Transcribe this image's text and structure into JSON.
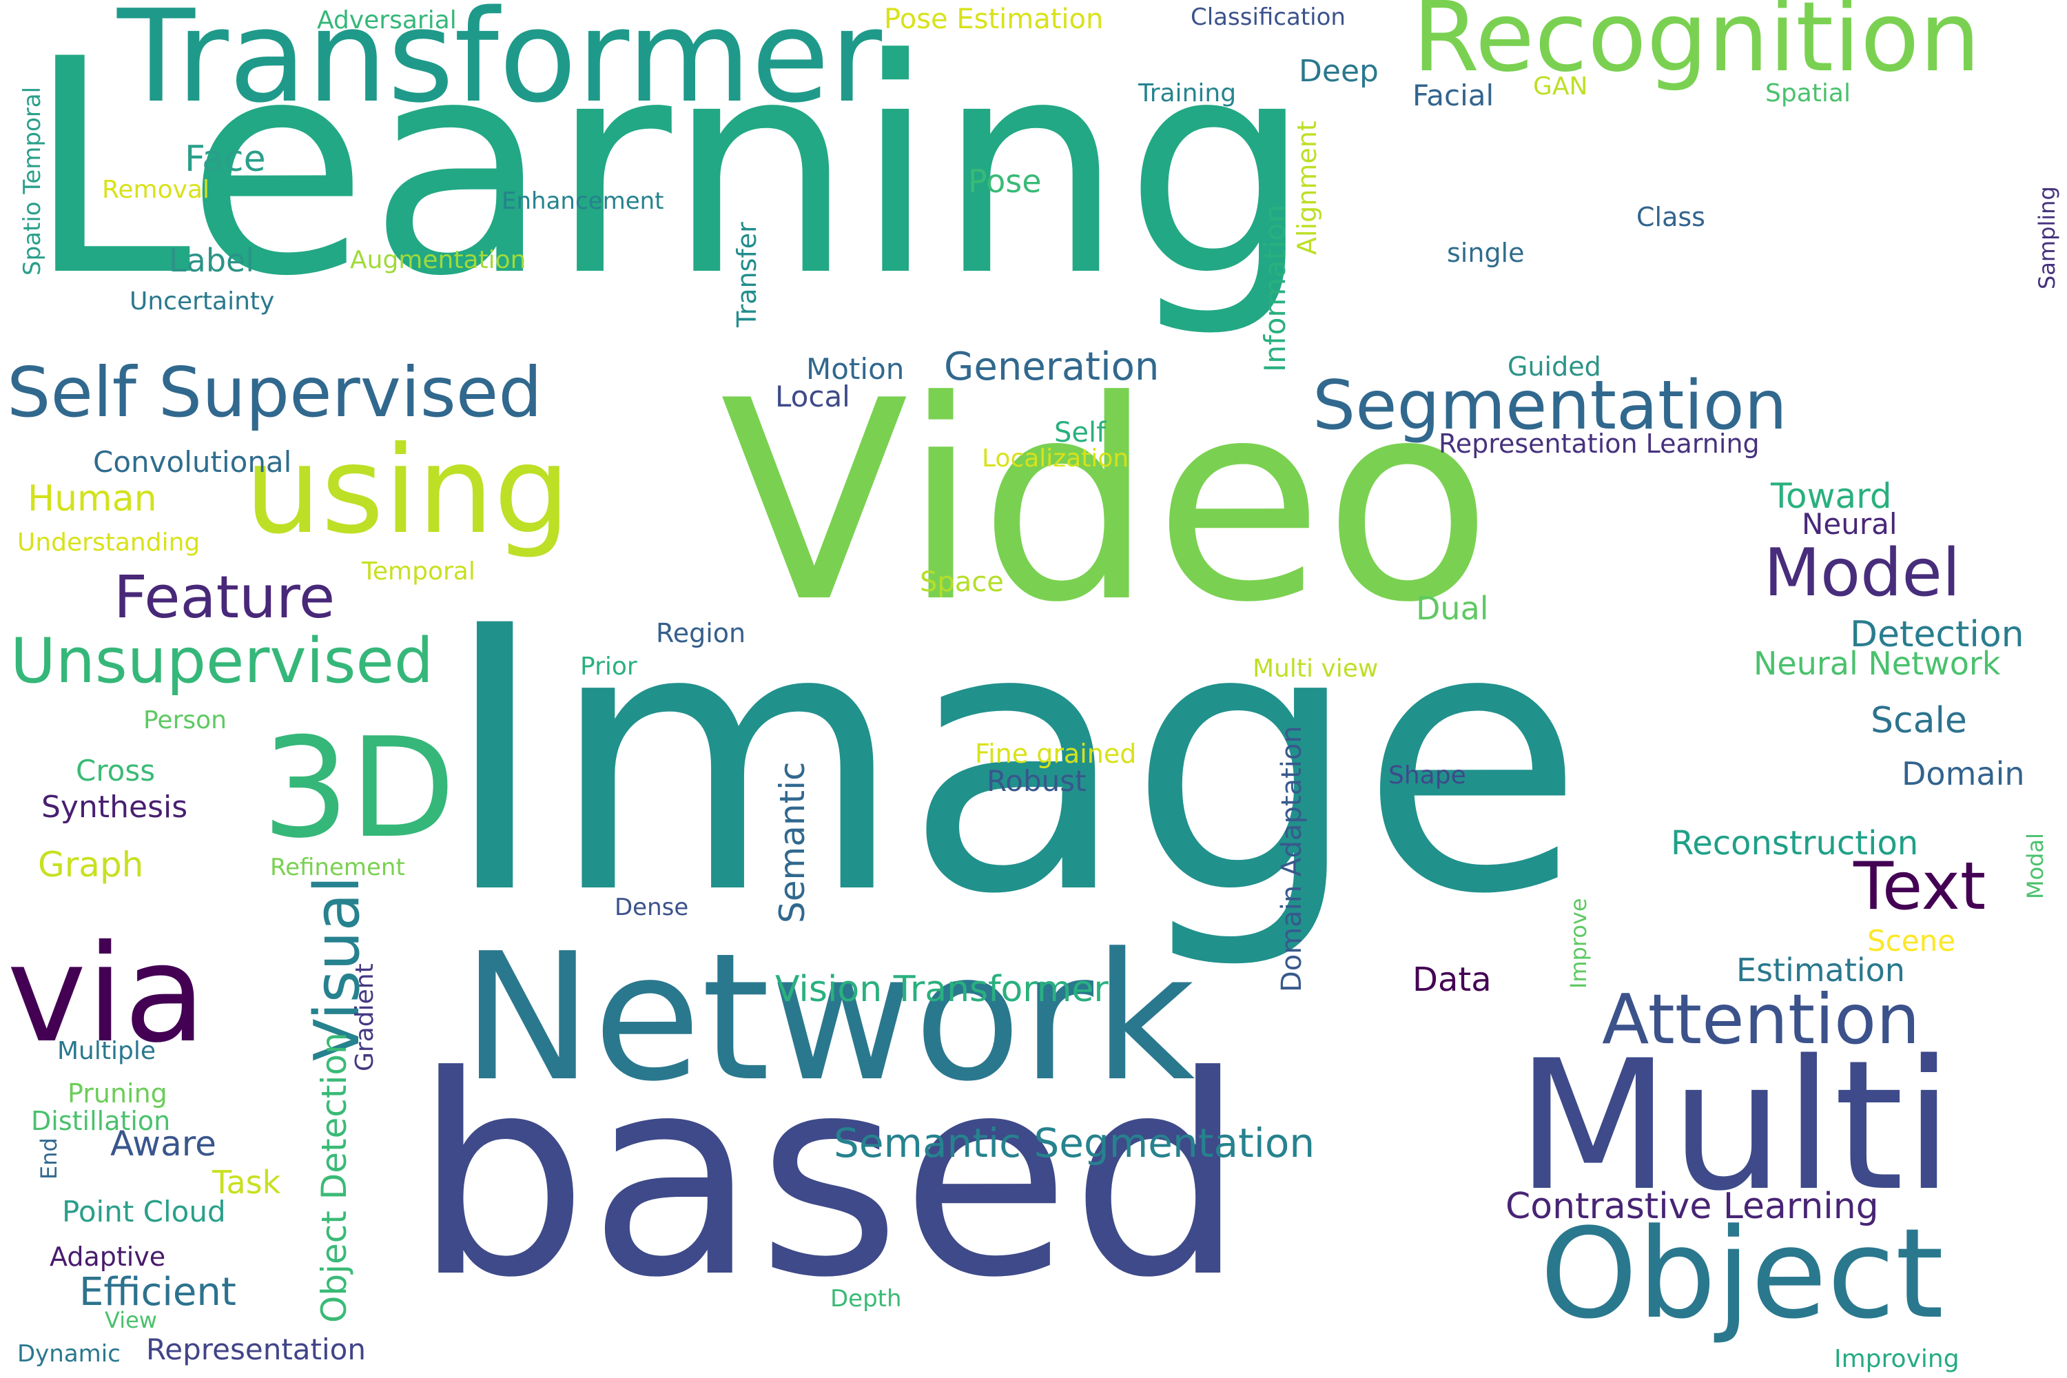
{
  "words": [
    {
      "text": "Learning",
      "color": "#22a884"
    },
    {
      "text": "Image",
      "color": "#21918c"
    },
    {
      "text": "Video",
      "color": "#7ad151"
    },
    {
      "text": "based",
      "color": "#3e4a89"
    },
    {
      "text": "Network",
      "color": "#2a788e"
    },
    {
      "text": "Multi",
      "color": "#3e4a89"
    },
    {
      "text": "Transformer",
      "color": "#1f9a8a"
    },
    {
      "text": "Recognition",
      "color": "#7ad151"
    },
    {
      "text": "Object",
      "color": "#2a788e"
    },
    {
      "text": "via",
      "color": "#440154"
    },
    {
      "text": "using",
      "color": "#bddf26"
    },
    {
      "text": "3D",
      "color": "#35b779"
    },
    {
      "text": "Self Supervised",
      "color": "#31688e"
    },
    {
      "text": "Segmentation",
      "color": "#31688e"
    },
    {
      "text": "Attention",
      "color": "#3b528b"
    },
    {
      "text": "Unsupervised",
      "color": "#35b779"
    },
    {
      "text": "Feature",
      "color": "#482878"
    },
    {
      "text": "Model",
      "color": "#472d7b"
    },
    {
      "text": "Text",
      "color": "#440154"
    },
    {
      "text": "Visual",
      "color": "#26828e"
    },
    {
      "text": "Semantic Segmentation",
      "color": "#26828e"
    },
    {
      "text": "Vision Transformer",
      "color": "#2ab07f"
    },
    {
      "text": "Contrastive Learning",
      "color": "#482475"
    },
    {
      "text": "Generation",
      "color": "#31688e"
    },
    {
      "text": "Efficient",
      "color": "#2c728e"
    },
    {
      "text": "Object Detection",
      "color": "#3aba76"
    },
    {
      "text": "Detection",
      "color": "#287d8e"
    },
    {
      "text": "Reconstruction",
      "color": "#1fa088"
    },
    {
      "text": "Estimation",
      "color": "#2a788e"
    },
    {
      "text": "Neural Network",
      "color": "#4ac16d"
    },
    {
      "text": "Scale",
      "color": "#2c728e"
    },
    {
      "text": "Domain",
      "color": "#33638d"
    },
    {
      "text": "Semantic",
      "color": "#31688e"
    },
    {
      "text": "Domain Adaptation",
      "color": "#38598c"
    },
    {
      "text": "Human",
      "color": "#d2e21b"
    },
    {
      "text": "Face",
      "color": "#2a9f8a"
    },
    {
      "text": "Convolutional",
      "color": "#2f6c8e"
    },
    {
      "text": "Label",
      "color": "#2c9387"
    },
    {
      "text": "Toward",
      "color": "#2ab07f"
    },
    {
      "text": "Data",
      "color": "#440154"
    },
    {
      "text": "Aware",
      "color": "#39568c"
    },
    {
      "text": "Synthesis",
      "color": "#481f70"
    },
    {
      "text": "Deep",
      "color": "#2a788e"
    },
    {
      "text": "Pose",
      "color": "#3aba76"
    },
    {
      "text": "Dual",
      "color": "#5ec962"
    },
    {
      "text": "Motion",
      "color": "#31688e"
    },
    {
      "text": "Local",
      "color": "#3e4a89"
    },
    {
      "text": "Robust",
      "color": "#39568c"
    },
    {
      "text": "Information",
      "color": "#2ab07f"
    },
    {
      "text": "Alignment",
      "color": "#bddf26"
    },
    {
      "text": "Graph",
      "color": "#c8e020"
    },
    {
      "text": "Facial",
      "color": "#32648e"
    },
    {
      "text": "Representation",
      "color": "#414487"
    },
    {
      "text": "Representation Learning",
      "color": "#46327e"
    },
    {
      "text": "Point Cloud",
      "color": "#2a9f8a"
    },
    {
      "text": "Space",
      "color": "#b5de2b"
    },
    {
      "text": "Neural",
      "color": "#482878"
    },
    {
      "text": "Transfer",
      "color": "#228d8d"
    },
    {
      "text": "Region",
      "color": "#355f8d"
    },
    {
      "text": "Cross",
      "color": "#3aba76"
    },
    {
      "text": "Multiple",
      "color": "#2a788e"
    },
    {
      "text": "Scene",
      "color": "#fde725"
    },
    {
      "text": "Task",
      "color": "#c8e020"
    },
    {
      "text": "Self",
      "color": "#2ab07f"
    },
    {
      "text": "Gradient",
      "color": "#443983"
    },
    {
      "text": "Pruning",
      "color": "#6ccd5a"
    },
    {
      "text": "Distillation",
      "color": "#4ac16d"
    },
    {
      "text": "Adaptive",
      "color": "#481a6c"
    },
    {
      "text": "Guided",
      "color": "#2c9387"
    },
    {
      "text": "single",
      "color": "#2f6c8e"
    },
    {
      "text": "Uncertainty",
      "color": "#2a788e"
    },
    {
      "text": "Classification",
      "color": "#3b528b"
    },
    {
      "text": "Pose Estimation",
      "color": "#d8e219"
    },
    {
      "text": "Fine grained",
      "color": "#d8e219"
    },
    {
      "text": "Temporal",
      "color": "#c8e020"
    },
    {
      "text": "Shape",
      "color": "#3e4a89"
    },
    {
      "text": "Dense",
      "color": "#3b528b"
    },
    {
      "text": "Person",
      "color": "#5ec962"
    },
    {
      "text": "Adversarial",
      "color": "#35b779"
    },
    {
      "text": "Training",
      "color": "#25848e"
    },
    {
      "text": "Spatial",
      "color": "#4ac16d"
    },
    {
      "text": "GAN",
      "color": "#bddf26"
    },
    {
      "text": "Class",
      "color": "#32648e"
    },
    {
      "text": "Localization",
      "color": "#d8e219"
    },
    {
      "text": "Understanding",
      "color": "#d8e219"
    },
    {
      "text": "Enhancement",
      "color": "#26828e"
    },
    {
      "text": "Augmentation",
      "color": "#a0da39"
    },
    {
      "text": "Removal",
      "color": "#d8e219"
    },
    {
      "text": "Spatio Temporal",
      "color": "#2a9f8a"
    },
    {
      "text": "Prior",
      "color": "#2ab07f"
    },
    {
      "text": "Refinement",
      "color": "#7ad151"
    },
    {
      "text": "Multi view",
      "color": "#bddf26"
    },
    {
      "text": "Sampling",
      "color": "#46327e"
    },
    {
      "text": "Modal",
      "color": "#4ac16d"
    },
    {
      "text": "Improve",
      "color": "#5ec962"
    },
    {
      "text": "Improving",
      "color": "#25ab82"
    },
    {
      "text": "Depth",
      "color": "#3aba76"
    },
    {
      "text": "View",
      "color": "#4ac16d"
    },
    {
      "text": "Dynamic",
      "color": "#2a788e"
    },
    {
      "text": "End",
      "color": "#31688e"
    }
  ]
}
